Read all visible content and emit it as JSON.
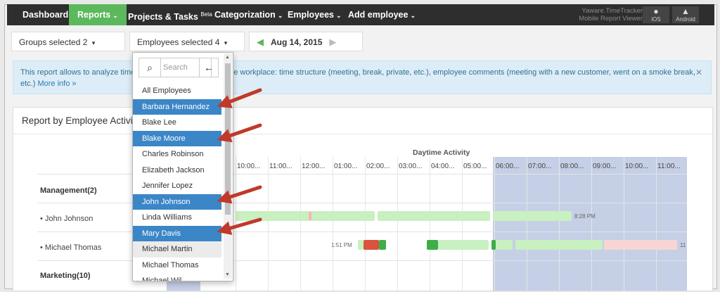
{
  "nav": {
    "items": [
      {
        "label": "Dashboard",
        "active": false
      },
      {
        "label": "Reports",
        "active": true
      },
      {
        "label": "Projects & Tasks",
        "badge": "Beta"
      },
      {
        "label": "Categorization"
      },
      {
        "label": "Employees"
      },
      {
        "label": "Add employee"
      }
    ],
    "mobile_title_1": "Yaware.TimeTracker",
    "mobile_title_2": "Mobile Report Viewer",
    "ios_label": "iOS",
    "android_label": "Android"
  },
  "filters": {
    "groups_label": "Groups selected 2",
    "employees_label": "Employees selected 4",
    "date": "Aug 14, 2015"
  },
  "alert": {
    "text_left": "This report allows to analyze time",
    "text_right": "e workplace: time structure (meeting, break, private, etc.), employee comments (meeting with a new customer, went on a smoke break,",
    "text_line2": "etc.)",
    "more_link": "More info »"
  },
  "report": {
    "title": "Report by Employee Activity",
    "daytime_title": "Daytime Activity",
    "time_headers": [
      "10:00...",
      "11:00...",
      "12:00...",
      "01:00...",
      "02:00...",
      "03:00...",
      "04:00...",
      "05:00...",
      "06:00...",
      "07:00...",
      "08:00...",
      "09:00...",
      "10:00...",
      "11:00..."
    ],
    "rows": [
      {
        "label": "Management(2)",
        "group": true
      },
      {
        "label": "• John Johnson",
        "group": false,
        "end_time": "8:28 PM"
      },
      {
        "label": "• Michael Thomas",
        "group": false,
        "start_time": "1:51 PM",
        "end_time": "11"
      },
      {
        "label": "Marketing(10)",
        "group": true
      }
    ]
  },
  "dropdown": {
    "search_placeholder": "Search",
    "items": [
      {
        "label": "All Employees",
        "selected": false
      },
      {
        "label": "Barbara Hernandez",
        "selected": true
      },
      {
        "label": "Blake Lee",
        "selected": false
      },
      {
        "label": "Blake Moore",
        "selected": true
      },
      {
        "label": "Charles Robinson",
        "selected": false
      },
      {
        "label": "Elizabeth Jackson",
        "selected": false
      },
      {
        "label": "Jennifer Lopez",
        "selected": false
      },
      {
        "label": "John Johnson",
        "selected": true
      },
      {
        "label": "Linda Williams",
        "selected": false
      },
      {
        "label": "Mary Davis",
        "selected": true
      },
      {
        "label": "Michael Martin",
        "selected": false,
        "hover": true
      },
      {
        "label": "Michael Thomas",
        "selected": false
      },
      {
        "label": "Michael Wil...",
        "selected": false
      }
    ]
  },
  "colors": {
    "nav_bg": "#2e2e2e",
    "nav_active": "#5cb85c",
    "selected_item": "#3b86c7",
    "arrow": "#c0392b",
    "activity_light": "#c9f0c0",
    "activity_dark": "#3fae49",
    "activity_red": "#d9533f",
    "activity_pink": "#f8d5d5",
    "night_shade": "#c5cfe6"
  }
}
